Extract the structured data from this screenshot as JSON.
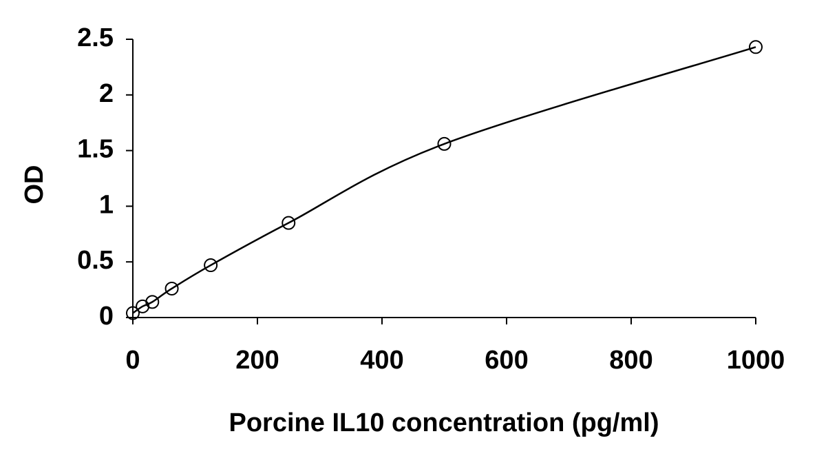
{
  "chart_data": {
    "type": "scatter",
    "x_label": "Porcine IL10 concentration (pg/ml)",
    "y_label": "OD",
    "x": [
      0,
      15.6,
      31.25,
      62.5,
      125,
      250,
      500,
      1000
    ],
    "values": [
      0.04,
      0.1,
      0.14,
      0.26,
      0.47,
      0.85,
      1.56,
      2.43
    ],
    "color": "#000000",
    "curve": true,
    "grid": false,
    "xlim": [
      0,
      1000
    ],
    "xticks": [
      0,
      200,
      400,
      600,
      800,
      1000
    ],
    "ylim": [
      0,
      2.5
    ],
    "yticks": [
      0,
      0.5,
      1,
      1.5,
      2,
      2.5
    ]
  }
}
